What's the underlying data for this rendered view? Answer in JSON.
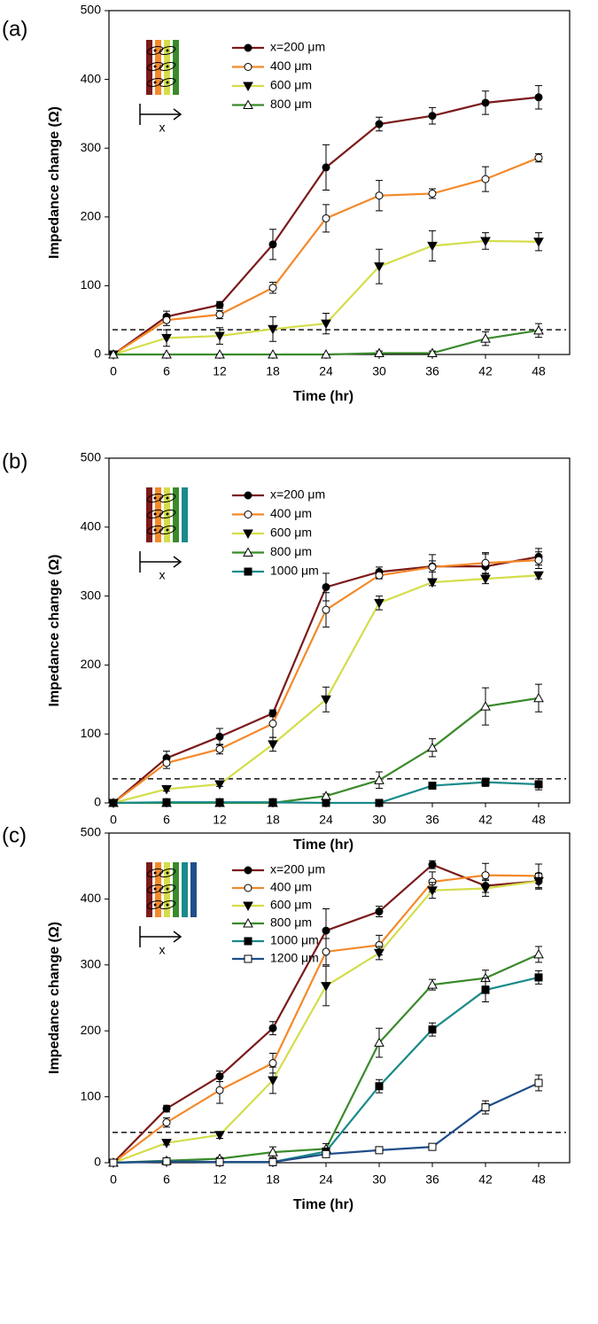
{
  "chart_data": [
    {
      "type": "line",
      "panel_label": "(a)",
      "x_label": "Time (hr)",
      "y_label": "Impedance change (Ω)",
      "inset_label": "x",
      "x": [
        0,
        6,
        12,
        18,
        24,
        30,
        36,
        42,
        48
      ],
      "xlim": [
        -0.5,
        51.5
      ],
      "xticks": [
        0,
        6,
        12,
        18,
        24,
        30,
        36,
        42,
        48
      ],
      "ylim": [
        0,
        500
      ],
      "yticks": [
        0,
        100,
        200,
        300,
        400,
        500
      ],
      "threshold": 36,
      "series": [
        {
          "name": "x=200 μm",
          "color": "#7b1a1a",
          "marker": "circle-filled",
          "values": [
            0,
            55,
            72,
            160,
            272,
            335,
            347,
            366,
            374
          ],
          "errors": [
            0,
            8,
            5,
            22,
            33,
            10,
            12,
            17,
            17
          ]
        },
        {
          "name": "400 μm",
          "color": "#f4892a",
          "marker": "circle-open",
          "values": [
            0,
            50,
            58,
            97,
            198,
            231,
            234,
            255,
            286
          ],
          "errors": [
            0,
            8,
            6,
            8,
            20,
            22,
            7,
            18,
            6
          ]
        },
        {
          "name": "600 μm",
          "color": "#d4dd4a",
          "marker": "triangle-down-filled",
          "values": [
            0,
            24,
            27,
            37,
            45,
            128,
            158,
            165,
            164
          ],
          "errors": [
            0,
            12,
            12,
            18,
            15,
            25,
            22,
            12,
            13
          ]
        },
        {
          "name": "800 μm",
          "color": "#3a8a2a",
          "marker": "triangle-up-open",
          "values": [
            0,
            0,
            0,
            0,
            0,
            2,
            2,
            23,
            35
          ],
          "errors": [
            0,
            0,
            0,
            0,
            0,
            3,
            3,
            10,
            10
          ]
        }
      ]
    },
    {
      "type": "line",
      "panel_label": "(b)",
      "x_label": "Time (hr)",
      "y_label": "Impedance change (Ω)",
      "inset_label": "x",
      "x": [
        0,
        6,
        12,
        18,
        24,
        30,
        36,
        42,
        48
      ],
      "xlim": [
        -0.5,
        51.5
      ],
      "xticks": [
        0,
        6,
        12,
        18,
        24,
        30,
        36,
        42,
        48
      ],
      "ylim": [
        0,
        500
      ],
      "yticks": [
        0,
        100,
        200,
        300,
        400,
        500
      ],
      "threshold": 35,
      "series": [
        {
          "name": "x=200 μm",
          "color": "#7b1a1a",
          "marker": "circle-filled",
          "values": [
            0,
            65,
            96,
            130,
            313,
            335,
            343,
            343,
            357
          ],
          "errors": [
            0,
            10,
            12,
            5,
            20,
            7,
            8,
            18,
            12
          ]
        },
        {
          "name": "400 μm",
          "color": "#f4892a",
          "marker": "circle-open",
          "values": [
            0,
            58,
            78,
            115,
            280,
            330,
            342,
            348,
            352
          ],
          "errors": [
            0,
            8,
            7,
            20,
            25,
            5,
            18,
            15,
            12
          ]
        },
        {
          "name": "600 μm",
          "color": "#d4dd4a",
          "marker": "triangle-down-filled",
          "values": [
            0,
            20,
            27,
            85,
            150,
            290,
            320,
            325,
            330
          ],
          "errors": [
            0,
            3,
            3,
            10,
            18,
            10,
            5,
            7,
            5
          ]
        },
        {
          "name": "800 μm",
          "color": "#3a8a2a",
          "marker": "triangle-up-open",
          "values": [
            0,
            0,
            0,
            0,
            10,
            33,
            80,
            140,
            152
          ],
          "errors": [
            0,
            0,
            0,
            0,
            3,
            12,
            13,
            27,
            20
          ]
        },
        {
          "name": "1000 μm",
          "color": "#1a8a8a",
          "marker": "square-filled",
          "values": [
            0,
            1,
            1,
            1,
            0,
            0,
            25,
            30,
            27
          ],
          "errors": [
            0,
            0,
            0,
            0,
            0,
            0,
            3,
            6,
            8
          ]
        }
      ]
    },
    {
      "type": "line",
      "panel_label": "(c)",
      "x_label": "Time (hr)",
      "y_label": "Impedance change (Ω)",
      "inset_label": "x",
      "x": [
        0,
        6,
        12,
        18,
        24,
        30,
        36,
        42,
        48
      ],
      "xlim": [
        -0.5,
        51.5
      ],
      "xticks": [
        0,
        6,
        12,
        18,
        24,
        30,
        36,
        42,
        48
      ],
      "ylim": [
        0,
        500
      ],
      "yticks": [
        0,
        100,
        200,
        300,
        400,
        500
      ],
      "threshold": 46,
      "series": [
        {
          "name": "x=200 μm",
          "color": "#7b1a1a",
          "marker": "circle-filled",
          "values": [
            0,
            82,
            131,
            204,
            352,
            381,
            452,
            420,
            427
          ],
          "errors": [
            0,
            5,
            8,
            10,
            33,
            8,
            6,
            10,
            10
          ]
        },
        {
          "name": "400 μm",
          "color": "#f4892a",
          "marker": "circle-open",
          "values": [
            0,
            61,
            110,
            151,
            320,
            330,
            426,
            436,
            435
          ],
          "errors": [
            0,
            7,
            20,
            15,
            20,
            15,
            15,
            18,
            18
          ]
        },
        {
          "name": "600 μm",
          "color": "#d4dd4a",
          "marker": "triangle-down-filled",
          "values": [
            0,
            30,
            42,
            125,
            268,
            318,
            413,
            416,
            427
          ],
          "errors": [
            0,
            3,
            5,
            20,
            30,
            10,
            12,
            12,
            12
          ]
        },
        {
          "name": "800 μm",
          "color": "#3a8a2a",
          "marker": "triangle-up-open",
          "values": [
            0,
            3,
            6,
            16,
            21,
            182,
            270,
            280,
            316
          ],
          "errors": [
            0,
            2,
            2,
            8,
            8,
            22,
            8,
            12,
            12
          ]
        },
        {
          "name": "1000 μm",
          "color": "#1a8a8a",
          "marker": "square-filled",
          "values": [
            0,
            2,
            1,
            1,
            17,
            116,
            202,
            262,
            281
          ],
          "errors": [
            0,
            0,
            0,
            0,
            5,
            10,
            10,
            18,
            10
          ]
        },
        {
          "name": "1200 μm",
          "color": "#1f4e8a",
          "marker": "square-open",
          "values": [
            0,
            2,
            1,
            1,
            13,
            19,
            24,
            84,
            121
          ],
          "errors": [
            0,
            0,
            0,
            0,
            3,
            3,
            3,
            10,
            12
          ]
        }
      ]
    }
  ]
}
